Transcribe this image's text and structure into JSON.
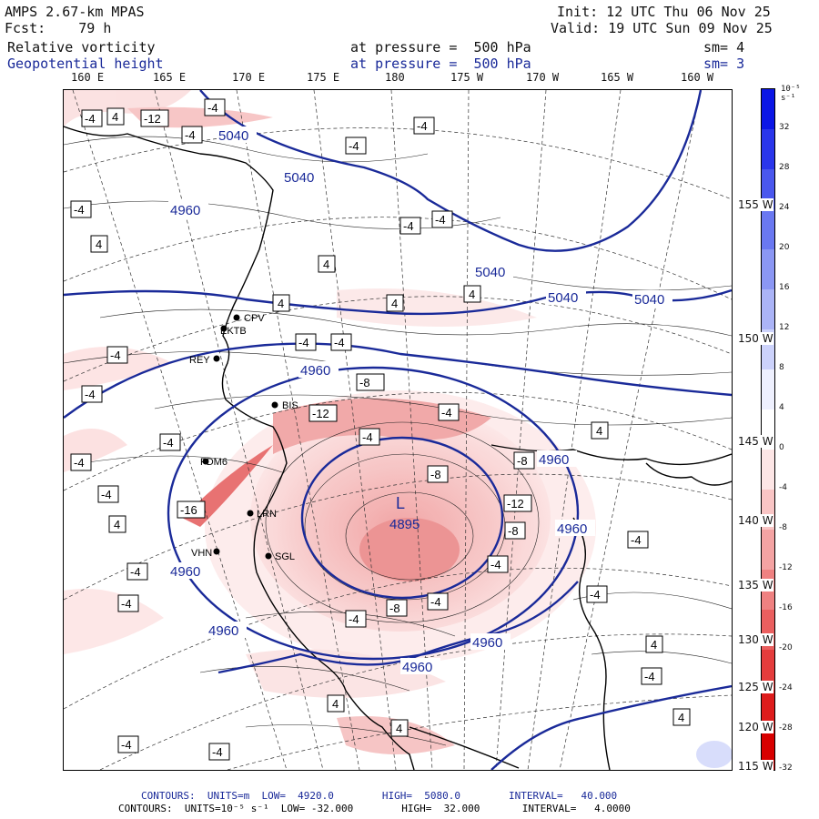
{
  "header": {
    "model": "AMPS 2.67-km MPAS",
    "fcst": "Fcst:    79 h",
    "init": "Init: 12 UTC Thu 06 Nov 25",
    "valid": "Valid: 19 UTC Sun 09 Nov 25",
    "field1_name": "Relative vorticity",
    "field1_level": "at pressure =  500 hPa",
    "field1_sm": "sm= 4",
    "field2_name": "Geopotential height",
    "field2_level": "at pressure =  500 hPa",
    "field2_sm": "sm= 3"
  },
  "longitudes": [
    "160 E",
    "165 E",
    "170 E",
    "175 E",
    "180",
    "175 W",
    "170 W",
    "165 W",
    "160 W"
  ],
  "latitudes": [
    "155 W",
    "150 W",
    "145 W",
    "140 W",
    "135 W",
    "130 W",
    "125 W",
    "120 W",
    "115 W"
  ],
  "stations": [
    "CPV",
    "EKTB",
    "REY",
    "BIS",
    "FDM6",
    "LRN",
    "VHN",
    "SGL"
  ],
  "height_labels": [
    "5040",
    "5040",
    "5040",
    "5040",
    "5040",
    "4960",
    "4960",
    "4960",
    "4960",
    "4960",
    "4960",
    "4960",
    "4960",
    "4895"
  ],
  "low_marker": "L",
  "vorticity_labels": [
    "-4",
    "4",
    "-12",
    "-8",
    "-16",
    "-12"
  ],
  "colorbar": {
    "unit": "10⁻⁵ s⁻¹",
    "ticks": [
      "32",
      "28",
      "24",
      "20",
      "16",
      "12",
      "8",
      "4",
      "0",
      "-4",
      "-8",
      "-12",
      "-16",
      "-20",
      "-24",
      "-28",
      "-32"
    ],
    "colors": [
      "#0b16e6",
      "#2a36eb",
      "#4a57ee",
      "#6a78f1",
      "#8b97f4",
      "#abb4f7",
      "#ccd2fb",
      "#eef0fe",
      "#ffffff",
      "#fde6e6",
      "#f9c5c5",
      "#f4a3a3",
      "#ef8181",
      "#ea5f5f",
      "#e43c3c",
      "#de1c1c",
      "#d80000"
    ]
  },
  "footer": {
    "line1": "CONTOURS:  UNITS=m  LOW=  4920.0        HIGH=  5080.0        INTERVAL=   40.000",
    "line2": "CONTOURS:  UNITS=10⁻⁵ s⁻¹  LOW= -32.000        HIGH=  32.000       INTERVAL=   4.0000"
  },
  "colors": {
    "height_contour": "#1a2a99",
    "vort_negative": "#e05050",
    "vort_positive": "#3a4ad8"
  }
}
